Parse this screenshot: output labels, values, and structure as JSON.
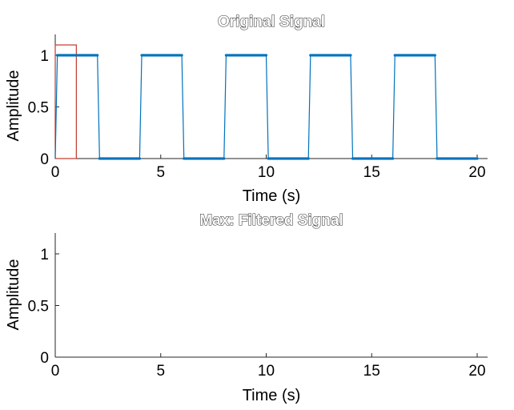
{
  "chart_data": [
    {
      "type": "line",
      "title": "Original Signal",
      "xlabel": "Time (s)",
      "ylabel": "Amplitude",
      "xlim": [
        0,
        20
      ],
      "ylim": [
        0,
        1.2
      ],
      "xticks": [
        "0",
        "5",
        "10",
        "15",
        "20"
      ],
      "yticks": [
        "0",
        "0.5",
        "1"
      ],
      "grid": false,
      "series": [
        {
          "color": "#0072BD",
          "marker": "point",
          "x": [
            0,
            0.1,
            2,
            2.1,
            4,
            4.1,
            6,
            6.1,
            8,
            8.1,
            10,
            10.1,
            12,
            12.1,
            14,
            14.1,
            16,
            16.1,
            18,
            18.1,
            20
          ],
          "y": [
            0,
            1,
            1,
            0,
            0,
            1,
            1,
            0,
            0,
            1,
            1,
            0,
            0,
            1,
            1,
            0,
            0,
            1,
            1,
            0,
            0
          ]
        }
      ],
      "annotations": [
        {
          "shape": "window-rectangle",
          "color": "#C0392B",
          "x": [
            0,
            1
          ],
          "y": [
            0,
            1.1
          ]
        }
      ]
    },
    {
      "type": "line",
      "title": "Max: Filtered Signal",
      "xlabel": "Time (s)",
      "ylabel": "Amplitude",
      "xlim": [
        0,
        20
      ],
      "ylim": [
        0,
        1.2
      ],
      "xticks": [
        "0",
        "5",
        "10",
        "15",
        "20"
      ],
      "yticks": [
        "0",
        "0.5",
        "1"
      ],
      "grid": false,
      "series": []
    }
  ]
}
